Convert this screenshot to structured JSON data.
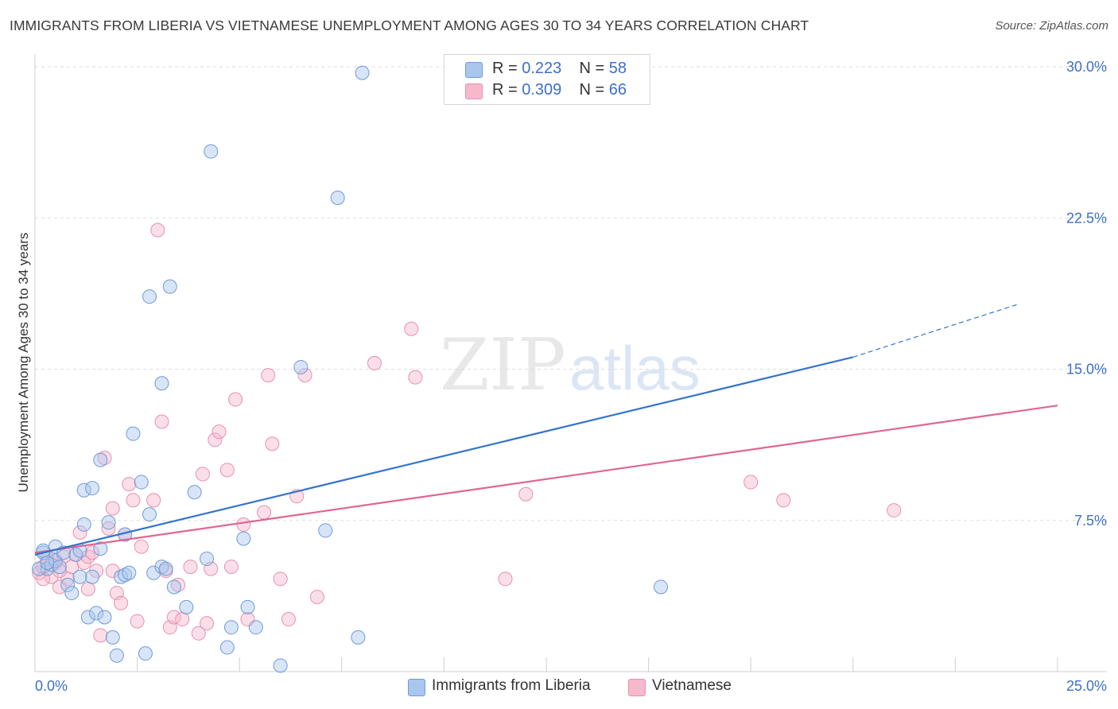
{
  "title": "IMMIGRANTS FROM LIBERIA VS VIETNAMESE UNEMPLOYMENT AMONG AGES 30 TO 34 YEARS CORRELATION CHART",
  "source": "Source: ZipAtlas.com",
  "watermark": {
    "zip": "ZIP",
    "atlas": "atlas"
  },
  "colors": {
    "blue_fill": "#a9c6ee",
    "blue_stroke": "#6f9ad8",
    "blue_line": "#3574cc",
    "pink_fill": "#f6b9cc",
    "pink_stroke": "#e890ab",
    "pink_line": "#e0668f",
    "axis_label": "#3d6fc8",
    "grid": "#dddddd"
  },
  "legend_top": [
    {
      "r_label": "R = ",
      "r_value": "0.223",
      "n_label": "N = ",
      "n_value": "58"
    },
    {
      "r_label": "R = ",
      "r_value": "0.309",
      "n_label": "N = ",
      "n_value": "66"
    }
  ],
  "chart_data": {
    "type": "scatter",
    "title": "IMMIGRANTS FROM LIBERIA VS VIETNAMESE UNEMPLOYMENT AMONG AGES 30 TO 34 YEARS CORRELATION CHART",
    "xlabel": "",
    "ylabel": "Unemployment Among Ages 30 to 34 years",
    "xlim": [
      0,
      25
    ],
    "ylim": [
      0,
      30
    ],
    "x_tick_labels": [
      "0.0%",
      "25.0%"
    ],
    "y_ticks": [
      7.5,
      15.0,
      22.5,
      30.0
    ],
    "y_tick_labels": [
      "7.5%",
      "15.0%",
      "22.5%",
      "30.0%"
    ],
    "grid": true,
    "legend_position": "top-center",
    "series": [
      {
        "name": "Immigrants from Liberia",
        "color": "#a9c6ee",
        "R": 0.223,
        "N": 58,
        "trend": {
          "x0": 0,
          "y0": 5.8,
          "x1": 20,
          "y1": 15.6,
          "dashed_to_x": 24,
          "dashed_to_y": 18.2
        },
        "points": [
          [
            0.2,
            5.9
          ],
          [
            0.3,
            5.1
          ],
          [
            0.4,
            5.3
          ],
          [
            0.5,
            5.5
          ],
          [
            0.5,
            6.2
          ],
          [
            0.6,
            5.2
          ],
          [
            0.7,
            5.9
          ],
          [
            0.8,
            4.3
          ],
          [
            0.9,
            3.9
          ],
          [
            1.0,
            5.8
          ],
          [
            1.1,
            6.0
          ],
          [
            1.1,
            4.7
          ],
          [
            1.2,
            7.3
          ],
          [
            1.2,
            9.0
          ],
          [
            1.3,
            2.7
          ],
          [
            1.4,
            9.1
          ],
          [
            1.4,
            4.7
          ],
          [
            1.5,
            2.9
          ],
          [
            1.6,
            10.5
          ],
          [
            1.6,
            6.1
          ],
          [
            1.7,
            2.7
          ],
          [
            1.8,
            7.4
          ],
          [
            1.9,
            1.7
          ],
          [
            2.0,
            0.8
          ],
          [
            2.1,
            4.7
          ],
          [
            2.2,
            6.8
          ],
          [
            2.2,
            4.8
          ],
          [
            2.3,
            4.9
          ],
          [
            2.4,
            11.8
          ],
          [
            2.6,
            9.4
          ],
          [
            2.7,
            0.9
          ],
          [
            2.8,
            7.8
          ],
          [
            2.8,
            18.6
          ],
          [
            2.9,
            4.9
          ],
          [
            3.1,
            5.2
          ],
          [
            3.1,
            14.3
          ],
          [
            3.2,
            5.1
          ],
          [
            3.3,
            19.1
          ],
          [
            3.4,
            4.2
          ],
          [
            3.7,
            3.2
          ],
          [
            3.9,
            8.9
          ],
          [
            4.2,
            5.6
          ],
          [
            4.3,
            25.8
          ],
          [
            4.7,
            1.2
          ],
          [
            4.8,
            2.2
          ],
          [
            5.1,
            6.6
          ],
          [
            5.2,
            3.2
          ],
          [
            5.4,
            2.2
          ],
          [
            6.0,
            0.3
          ],
          [
            6.5,
            15.1
          ],
          [
            7.1,
            7.0
          ],
          [
            7.4,
            23.5
          ],
          [
            7.9,
            1.7
          ],
          [
            8.0,
            29.7
          ],
          [
            15.3,
            4.2
          ],
          [
            0.1,
            5.1
          ],
          [
            0.2,
            6.0
          ],
          [
            0.3,
            5.4
          ]
        ]
      },
      {
        "name": "Vietnamese",
        "color": "#f6b9cc",
        "R": 0.309,
        "N": 66,
        "trend": {
          "x0": 0,
          "y0": 5.9,
          "x1": 25,
          "y1": 13.2
        },
        "points": [
          [
            0.1,
            4.9
          ],
          [
            0.2,
            5.2
          ],
          [
            0.3,
            5.6
          ],
          [
            0.4,
            4.7
          ],
          [
            0.5,
            5.4
          ],
          [
            0.6,
            4.2
          ],
          [
            0.7,
            5.7
          ],
          [
            0.8,
            4.6
          ],
          [
            0.9,
            5.2
          ],
          [
            1.0,
            5.8
          ],
          [
            1.1,
            6.9
          ],
          [
            1.2,
            5.4
          ],
          [
            1.3,
            4.1
          ],
          [
            1.3,
            5.7
          ],
          [
            1.4,
            5.9
          ],
          [
            1.5,
            5.0
          ],
          [
            1.6,
            1.8
          ],
          [
            1.7,
            10.6
          ],
          [
            1.8,
            7.1
          ],
          [
            1.9,
            8.1
          ],
          [
            1.9,
            5.0
          ],
          [
            2.0,
            3.9
          ],
          [
            2.1,
            3.4
          ],
          [
            2.2,
            6.8
          ],
          [
            2.3,
            9.3
          ],
          [
            2.4,
            8.5
          ],
          [
            2.5,
            2.5
          ],
          [
            2.6,
            6.2
          ],
          [
            2.9,
            8.5
          ],
          [
            3.0,
            21.9
          ],
          [
            3.1,
            12.4
          ],
          [
            3.2,
            5.0
          ],
          [
            3.3,
            2.2
          ],
          [
            3.4,
            2.7
          ],
          [
            3.5,
            4.3
          ],
          [
            3.6,
            2.6
          ],
          [
            3.8,
            5.2
          ],
          [
            4.0,
            1.9
          ],
          [
            4.1,
            9.8
          ],
          [
            4.2,
            2.4
          ],
          [
            4.3,
            5.1
          ],
          [
            4.4,
            11.5
          ],
          [
            4.5,
            11.9
          ],
          [
            4.7,
            10.0
          ],
          [
            4.8,
            5.2
          ],
          [
            4.9,
            13.5
          ],
          [
            5.1,
            7.3
          ],
          [
            5.2,
            2.6
          ],
          [
            5.6,
            7.9
          ],
          [
            5.7,
            14.7
          ],
          [
            5.8,
            11.3
          ],
          [
            6.0,
            4.6
          ],
          [
            6.2,
            2.6
          ],
          [
            6.4,
            8.7
          ],
          [
            6.6,
            14.7
          ],
          [
            6.9,
            3.7
          ],
          [
            8.3,
            15.3
          ],
          [
            9.2,
            17.0
          ],
          [
            9.3,
            14.6
          ],
          [
            11.5,
            4.6
          ],
          [
            12.0,
            8.8
          ],
          [
            17.5,
            9.4
          ],
          [
            18.3,
            8.5
          ],
          [
            21.0,
            8.0
          ],
          [
            0.2,
            4.6
          ],
          [
            0.6,
            5.0
          ]
        ]
      }
    ]
  },
  "legend_bottom": [
    "Immigrants from Liberia",
    "Vietnamese"
  ]
}
